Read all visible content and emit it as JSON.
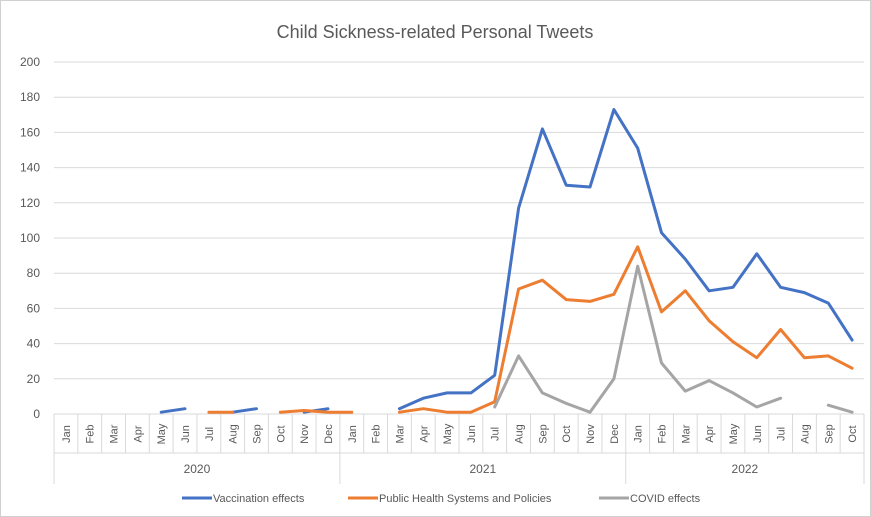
{
  "chart_data": {
    "type": "line",
    "title": "Child Sickness-related Personal Tweets",
    "xlabel": "",
    "ylabel": "",
    "ylim": [
      0,
      200
    ],
    "yticks": [
      0,
      20,
      40,
      60,
      80,
      100,
      120,
      140,
      160,
      180,
      200
    ],
    "grid": true,
    "legend_position": "bottom",
    "years": [
      {
        "label": "2020",
        "months": [
          "Jan",
          "Feb",
          "Mar",
          "Apr",
          "May",
          "Jun",
          "Jul",
          "Aug",
          "Sep",
          "Oct",
          "Nov",
          "Dec"
        ]
      },
      {
        "label": "2021",
        "months": [
          "Jan",
          "Feb",
          "Mar",
          "Apr",
          "May",
          "Jun",
          "Jul",
          "Aug",
          "Sep",
          "Oct",
          "Nov",
          "Dec"
        ]
      },
      {
        "label": "2022",
        "months": [
          "Jan",
          "Feb",
          "Mar",
          "Apr",
          "May",
          "Jun",
          "Jul",
          "Aug",
          "Sep",
          "Oct"
        ]
      }
    ],
    "series": [
      {
        "name": "Vaccination effects",
        "color": "#4472c4",
        "values": [
          null,
          null,
          null,
          null,
          1,
          3,
          null,
          1,
          3,
          null,
          1,
          3,
          null,
          null,
          3,
          9,
          12,
          12,
          22,
          117,
          162,
          130,
          129,
          173,
          151,
          103,
          88,
          70,
          72,
          91,
          72,
          69,
          63,
          42
        ]
      },
      {
        "name": "Public Health Systems and Policies",
        "color": "#ed7d31",
        "values": [
          null,
          null,
          null,
          null,
          null,
          null,
          1,
          1,
          null,
          1,
          2,
          1,
          1,
          null,
          1,
          3,
          1,
          1,
          7,
          71,
          76,
          65,
          64,
          68,
          95,
          58,
          70,
          53,
          41,
          32,
          48,
          32,
          33,
          26
        ]
      },
      {
        "name": "COVID effects",
        "color": "#a5a5a5",
        "values": [
          null,
          null,
          null,
          null,
          null,
          null,
          null,
          null,
          null,
          null,
          null,
          null,
          null,
          null,
          null,
          null,
          null,
          null,
          4,
          33,
          12,
          6,
          1,
          20,
          84,
          29,
          13,
          19,
          12,
          4,
          9,
          null,
          5,
          1
        ]
      }
    ]
  }
}
